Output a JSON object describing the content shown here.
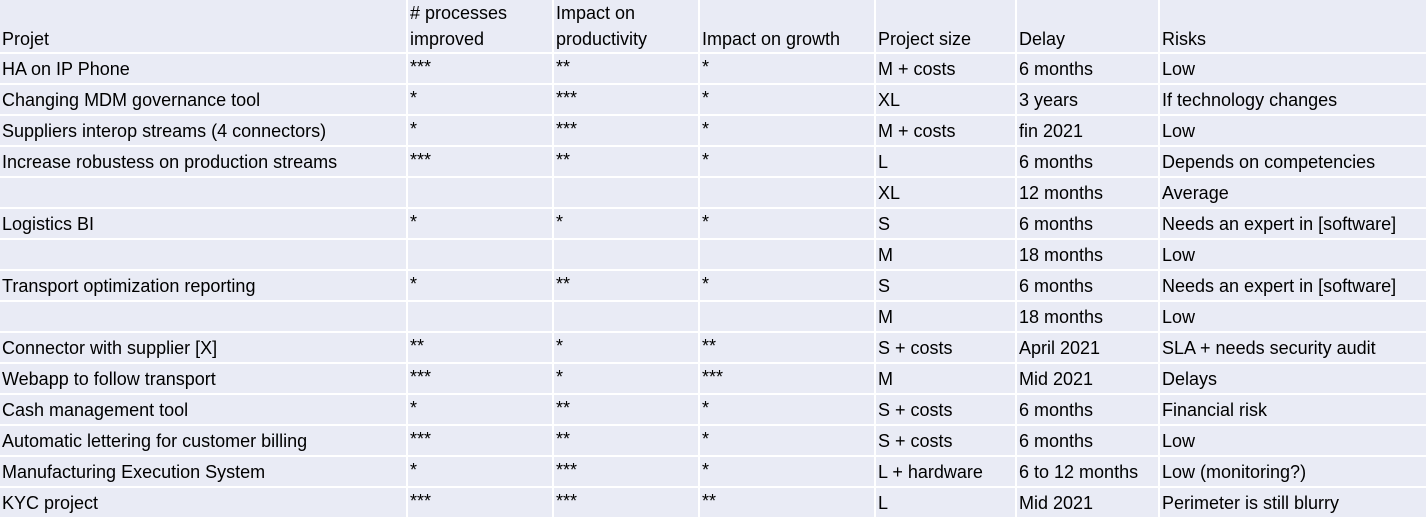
{
  "table": {
    "headers": [
      "Projet",
      "# processes improved",
      "Impact on productivity",
      "Impact on growth",
      "Project size",
      "Delay",
      "Risks"
    ],
    "rows": [
      [
        "HA on IP Phone",
        "***",
        "**",
        "*",
        "M + costs",
        "6 months",
        "Low"
      ],
      [
        "Changing MDM governance tool",
        "*",
        "***",
        "*",
        "XL",
        "3 years",
        "If technology changes"
      ],
      [
        "Suppliers interop streams (4 connectors)",
        "*",
        "***",
        "*",
        "M + costs",
        "fin 2021",
        "Low"
      ],
      [
        "Increase robustess on production streams",
        "***",
        "**",
        "*",
        "L",
        "6 months",
        "Depends on competencies"
      ],
      [
        "",
        "",
        "",
        "",
        "XL",
        "12 months",
        "Average"
      ],
      [
        "Logistics BI",
        "*",
        "*",
        "*",
        "S",
        "6 months",
        "Needs an expert in [software]"
      ],
      [
        "",
        "",
        "",
        "",
        "M",
        "18 months",
        "Low"
      ],
      [
        "Transport optimization reporting",
        "*",
        "**",
        "*",
        "S",
        "6 months",
        "Needs an expert in [software]"
      ],
      [
        "",
        "",
        "",
        "",
        "M",
        "18 months",
        "Low"
      ],
      [
        "Connector with supplier [X]",
        "**",
        "*",
        "**",
        "S + costs",
        "April 2021",
        "SLA + needs security audit"
      ],
      [
        "Webapp to follow transport",
        "***",
        "*",
        "***",
        "M",
        "Mid 2021",
        "Delays"
      ],
      [
        "Cash management tool",
        "*",
        "**",
        "*",
        "S + costs",
        "6 months",
        "Financial risk"
      ],
      [
        "Automatic lettering for customer billing",
        "***",
        "**",
        "*",
        "S + costs",
        "6 months",
        "Low"
      ],
      [
        "Manufacturing Execution System",
        "*",
        "***",
        "*",
        "L + hardware",
        "6 to 12 months",
        "Low (monitoring?)"
      ],
      [
        "KYC project",
        "***",
        "***",
        "**",
        "L",
        "Mid 2021",
        "Perimeter is still blurry"
      ]
    ]
  },
  "colors": {
    "cell_background": "#e9ebf5",
    "grid_lines": "#ffffff",
    "text": "#000000"
  }
}
